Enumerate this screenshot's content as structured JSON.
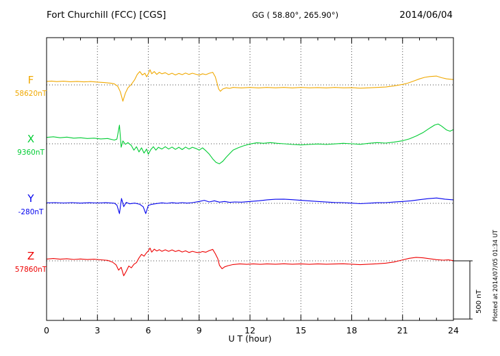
{
  "header": {
    "station": "Fort Churchill (FCC)  [CGS]",
    "coords": "GG ( 58.80°, 265.90°)",
    "date": "2014/06/04"
  },
  "footer": {
    "plotted_note": "Plotted at 2014/07/05 01:34 UT"
  },
  "scale_bar": {
    "label": "500 nT",
    "value_nT": 500
  },
  "chart_data": {
    "type": "line",
    "title": "Fort Churchill (FCC) [CGS] magnetogram 2014/06/04",
    "xlabel": "U T (hour)",
    "x_range": [
      0,
      24
    ],
    "x_ticks": [
      0,
      3,
      6,
      9,
      12,
      15,
      18,
      21,
      24
    ],
    "y_unit": "nT",
    "scale_division_nT": 500,
    "series": [
      {
        "name": "F",
        "baseline_label": "58620nT",
        "baseline_nT": 58620,
        "color": "#f0a800",
        "points": [
          [
            0,
            30
          ],
          [
            0.3,
            33
          ],
          [
            0.6,
            28
          ],
          [
            1,
            32
          ],
          [
            1.4,
            27
          ],
          [
            1.8,
            30
          ],
          [
            2.2,
            26
          ],
          [
            2.6,
            29
          ],
          [
            3,
            24
          ],
          [
            3.4,
            20
          ],
          [
            3.8,
            14
          ],
          [
            4,
            8
          ],
          [
            4.2,
            -12
          ],
          [
            4.35,
            -60
          ],
          [
            4.5,
            -140
          ],
          [
            4.65,
            -70
          ],
          [
            4.8,
            -25
          ],
          [
            5,
            5
          ],
          [
            5.2,
            45
          ],
          [
            5.35,
            90
          ],
          [
            5.5,
            115
          ],
          [
            5.65,
            85
          ],
          [
            5.8,
            100
          ],
          [
            5.9,
            70
          ],
          [
            6,
            95
          ],
          [
            6.1,
            130
          ],
          [
            6.2,
            95
          ],
          [
            6.35,
            115
          ],
          [
            6.5,
            90
          ],
          [
            6.65,
            108
          ],
          [
            6.8,
            95
          ],
          [
            7,
            105
          ],
          [
            7.2,
            88
          ],
          [
            7.4,
            100
          ],
          [
            7.6,
            85
          ],
          [
            7.8,
            98
          ],
          [
            8,
            88
          ],
          [
            8.2,
            102
          ],
          [
            8.4,
            90
          ],
          [
            8.6,
            100
          ],
          [
            8.8,
            92
          ],
          [
            9,
            84
          ],
          [
            9.2,
            95
          ],
          [
            9.4,
            88
          ],
          [
            9.6,
            100
          ],
          [
            9.8,
            108
          ],
          [
            9.95,
            70
          ],
          [
            10.05,
            20
          ],
          [
            10.15,
            -35
          ],
          [
            10.25,
            -55
          ],
          [
            10.4,
            -35
          ],
          [
            10.6,
            -25
          ],
          [
            10.8,
            -30
          ],
          [
            11,
            -22
          ],
          [
            11.5,
            -26
          ],
          [
            12,
            -22
          ],
          [
            12.5,
            -26
          ],
          [
            13,
            -22
          ],
          [
            13.5,
            -25
          ],
          [
            14,
            -22
          ],
          [
            14.5,
            -26
          ],
          [
            15,
            -22
          ],
          [
            15.5,
            -25
          ],
          [
            16,
            -23
          ],
          [
            16.5,
            -26
          ],
          [
            17,
            -22
          ],
          [
            17.5,
            -25
          ],
          [
            18,
            -24
          ],
          [
            18.5,
            -28
          ],
          [
            19,
            -25
          ],
          [
            19.5,
            -22
          ],
          [
            20,
            -18
          ],
          [
            20.5,
            -8
          ],
          [
            21,
            4
          ],
          [
            21.3,
            15
          ],
          [
            21.6,
            30
          ],
          [
            22,
            52
          ],
          [
            22.3,
            65
          ],
          [
            22.6,
            72
          ],
          [
            23,
            76
          ],
          [
            23.3,
            62
          ],
          [
            23.6,
            52
          ],
          [
            24,
            46
          ]
        ]
      },
      {
        "name": "X",
        "baseline_label": "9360nT",
        "baseline_nT": 9360,
        "color": "#00cc33",
        "points": [
          [
            0,
            55
          ],
          [
            0.4,
            60
          ],
          [
            0.8,
            52
          ],
          [
            1.2,
            57
          ],
          [
            1.6,
            48
          ],
          [
            2,
            52
          ],
          [
            2.4,
            45
          ],
          [
            2.8,
            48
          ],
          [
            3.2,
            42
          ],
          [
            3.6,
            45
          ],
          [
            4,
            32
          ],
          [
            4.15,
            40
          ],
          [
            4.3,
            160
          ],
          [
            4.4,
            -30
          ],
          [
            4.5,
            25
          ],
          [
            4.65,
            -5
          ],
          [
            4.8,
            10
          ],
          [
            5,
            -15
          ],
          [
            5.15,
            -55
          ],
          [
            5.3,
            -25
          ],
          [
            5.45,
            -70
          ],
          [
            5.6,
            -35
          ],
          [
            5.75,
            -80
          ],
          [
            5.9,
            -45
          ],
          [
            6,
            -90
          ],
          [
            6.15,
            -50
          ],
          [
            6.3,
            -25
          ],
          [
            6.45,
            -55
          ],
          [
            6.6,
            -30
          ],
          [
            6.8,
            -45
          ],
          [
            7,
            -25
          ],
          [
            7.2,
            -45
          ],
          [
            7.4,
            -28
          ],
          [
            7.6,
            -48
          ],
          [
            7.8,
            -30
          ],
          [
            8,
            -50
          ],
          [
            8.2,
            -28
          ],
          [
            8.4,
            -45
          ],
          [
            8.6,
            -30
          ],
          [
            8.8,
            -40
          ],
          [
            9,
            -55
          ],
          [
            9.2,
            -35
          ],
          [
            9.4,
            -60
          ],
          [
            9.6,
            -90
          ],
          [
            9.8,
            -130
          ],
          [
            10,
            -160
          ],
          [
            10.2,
            -172
          ],
          [
            10.4,
            -150
          ],
          [
            10.6,
            -115
          ],
          [
            10.8,
            -85
          ],
          [
            11,
            -55
          ],
          [
            11.3,
            -35
          ],
          [
            11.6,
            -18
          ],
          [
            12,
            -2
          ],
          [
            12.4,
            8
          ],
          [
            12.8,
            4
          ],
          [
            13.2,
            10
          ],
          [
            13.6,
            4
          ],
          [
            14,
            0
          ],
          [
            14.5,
            -6
          ],
          [
            15,
            -10
          ],
          [
            15.5,
            -6
          ],
          [
            16,
            -2
          ],
          [
            16.5,
            -6
          ],
          [
            17,
            -1
          ],
          [
            17.5,
            4
          ],
          [
            18,
            0
          ],
          [
            18.5,
            -5
          ],
          [
            19,
            4
          ],
          [
            19.5,
            10
          ],
          [
            20,
            6
          ],
          [
            20.5,
            14
          ],
          [
            21,
            26
          ],
          [
            21.4,
            42
          ],
          [
            21.8,
            66
          ],
          [
            22.2,
            95
          ],
          [
            22.6,
            135
          ],
          [
            22.9,
            162
          ],
          [
            23.1,
            170
          ],
          [
            23.3,
            152
          ],
          [
            23.6,
            118
          ],
          [
            23.8,
            108
          ],
          [
            24,
            122
          ]
        ]
      },
      {
        "name": "Y",
        "baseline_label": "-280nT",
        "baseline_nT": -280,
        "color": "#0000ee",
        "points": [
          [
            0,
            4
          ],
          [
            0.5,
            6
          ],
          [
            1,
            3
          ],
          [
            1.5,
            6
          ],
          [
            2,
            2
          ],
          [
            2.5,
            5
          ],
          [
            3,
            3
          ],
          [
            3.5,
            5
          ],
          [
            4,
            1
          ],
          [
            4.15,
            -15
          ],
          [
            4.3,
            -88
          ],
          [
            4.42,
            42
          ],
          [
            4.55,
            -28
          ],
          [
            4.7,
            8
          ],
          [
            4.9,
            -4
          ],
          [
            5.2,
            2
          ],
          [
            5.5,
            -8
          ],
          [
            5.7,
            -30
          ],
          [
            5.85,
            -88
          ],
          [
            6,
            -18
          ],
          [
            6.2,
            -8
          ],
          [
            6.5,
            -2
          ],
          [
            6.8,
            4
          ],
          [
            7.1,
            0
          ],
          [
            7.4,
            5
          ],
          [
            7.7,
            1
          ],
          [
            8,
            6
          ],
          [
            8.3,
            2
          ],
          [
            8.6,
            6
          ],
          [
            9,
            16
          ],
          [
            9.3,
            26
          ],
          [
            9.6,
            12
          ],
          [
            9.9,
            22
          ],
          [
            10.2,
            10
          ],
          [
            10.5,
            16
          ],
          [
            10.8,
            8
          ],
          [
            11.1,
            12
          ],
          [
            11.5,
            10
          ],
          [
            12,
            16
          ],
          [
            12.5,
            22
          ],
          [
            13,
            30
          ],
          [
            13.5,
            35
          ],
          [
            14,
            36
          ],
          [
            14.5,
            31
          ],
          [
            15,
            26
          ],
          [
            15.5,
            21
          ],
          [
            16,
            16
          ],
          [
            16.5,
            11
          ],
          [
            17,
            7
          ],
          [
            17.5,
            6
          ],
          [
            18,
            2
          ],
          [
            18.5,
            -3
          ],
          [
            19,
            1
          ],
          [
            19.5,
            5
          ],
          [
            20,
            6
          ],
          [
            20.5,
            11
          ],
          [
            21,
            16
          ],
          [
            21.5,
            22
          ],
          [
            22,
            31
          ],
          [
            22.5,
            40
          ],
          [
            23,
            46
          ],
          [
            23.5,
            36
          ],
          [
            24,
            30
          ]
        ]
      },
      {
        "name": "Z",
        "baseline_label": "57860nT",
        "baseline_nT": 57860,
        "color": "#ee0000",
        "points": [
          [
            0,
            15
          ],
          [
            0.4,
            20
          ],
          [
            0.8,
            14
          ],
          [
            1.2,
            18
          ],
          [
            1.6,
            12
          ],
          [
            2,
            16
          ],
          [
            2.4,
            11
          ],
          [
            2.8,
            14
          ],
          [
            3.2,
            9
          ],
          [
            3.6,
            4
          ],
          [
            3.9,
            -12
          ],
          [
            4.1,
            -35
          ],
          [
            4.25,
            -80
          ],
          [
            4.4,
            -55
          ],
          [
            4.55,
            -128
          ],
          [
            4.7,
            -90
          ],
          [
            4.85,
            -45
          ],
          [
            5,
            -60
          ],
          [
            5.15,
            -30
          ],
          [
            5.3,
            -15
          ],
          [
            5.45,
            25
          ],
          [
            5.6,
            55
          ],
          [
            5.75,
            40
          ],
          [
            5.9,
            70
          ],
          [
            6,
            85
          ],
          [
            6.1,
            110
          ],
          [
            6.2,
            75
          ],
          [
            6.35,
            100
          ],
          [
            6.5,
            85
          ],
          [
            6.65,
            96
          ],
          [
            6.8,
            82
          ],
          [
            7,
            95
          ],
          [
            7.2,
            82
          ],
          [
            7.4,
            94
          ],
          [
            7.6,
            80
          ],
          [
            7.8,
            90
          ],
          [
            8,
            76
          ],
          [
            8.2,
            86
          ],
          [
            8.4,
            72
          ],
          [
            8.6,
            82
          ],
          [
            8.8,
            74
          ],
          [
            9,
            70
          ],
          [
            9.2,
            80
          ],
          [
            9.4,
            74
          ],
          [
            9.6,
            88
          ],
          [
            9.8,
            98
          ],
          [
            9.95,
            62
          ],
          [
            10.1,
            18
          ],
          [
            10.2,
            -38
          ],
          [
            10.35,
            -68
          ],
          [
            10.5,
            -52
          ],
          [
            10.7,
            -42
          ],
          [
            11,
            -32
          ],
          [
            11.4,
            -26
          ],
          [
            11.8,
            -30
          ],
          [
            12.2,
            -26
          ],
          [
            12.6,
            -30
          ],
          [
            13,
            -26
          ],
          [
            13.5,
            -29
          ],
          [
            14,
            -25
          ],
          [
            14.5,
            -29
          ],
          [
            15,
            -26
          ],
          [
            15.5,
            -30
          ],
          [
            16,
            -26
          ],
          [
            16.5,
            -29
          ],
          [
            17,
            -27
          ],
          [
            17.5,
            -25
          ],
          [
            18,
            -29
          ],
          [
            18.5,
            -33
          ],
          [
            19,
            -29
          ],
          [
            19.5,
            -25
          ],
          [
            20,
            -20
          ],
          [
            20.5,
            -10
          ],
          [
            21,
            8
          ],
          [
            21.4,
            22
          ],
          [
            21.8,
            30
          ],
          [
            22.2,
            26
          ],
          [
            22.6,
            18
          ],
          [
            23,
            10
          ],
          [
            23.4,
            6
          ],
          [
            23.7,
            8
          ],
          [
            24,
            2
          ]
        ]
      }
    ]
  }
}
